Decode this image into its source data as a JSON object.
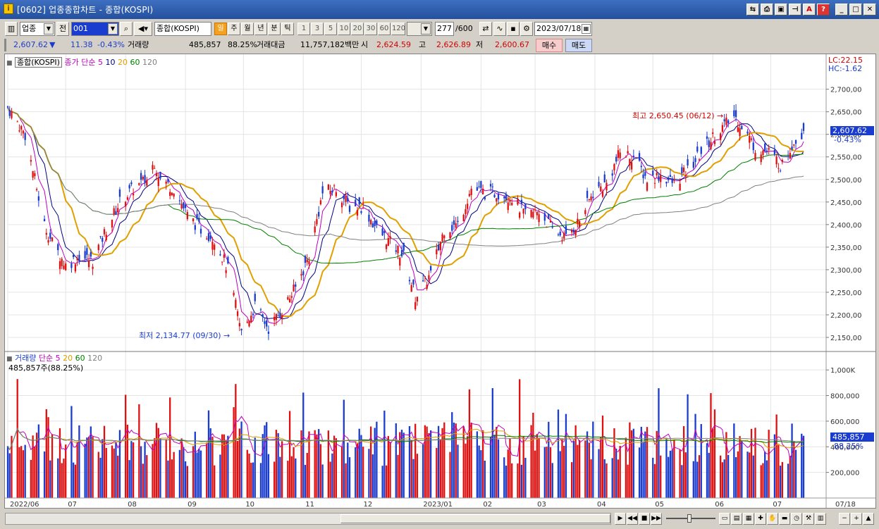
{
  "window": {
    "title": "[0602] 업종종합차트 - 종합(KOSPI)",
    "app_icon": "i"
  },
  "toolbar": {
    "market": "업종",
    "prev_label": "전",
    "code": "001",
    "search_icon": "magnifier-icon",
    "name": "종합(KOSPI)",
    "periods": [
      "일",
      "주",
      "월",
      "년",
      "분",
      "틱"
    ],
    "active_period": "일",
    "intervals": [
      "1",
      "3",
      "5",
      "10",
      "20",
      "30",
      "60",
      "120"
    ],
    "count": "277",
    "count_total": "/600",
    "date": "2023/07/18"
  },
  "quote": {
    "price": "2,607.62",
    "direction": "▼",
    "change": "11.38",
    "change_pct": "-0.43%",
    "volume_label": "거래량",
    "volume": "485,857",
    "volume_pct": "88.25%",
    "amount_label": "거래대금",
    "amount": "11,757,182백만",
    "open_label": "시",
    "open": "2,624.59",
    "high_label": "고",
    "high": "2,626.89",
    "low_label": "저",
    "low": "2,600.67",
    "buy_label": "매수",
    "sell_label": "매도"
  },
  "price_panel": {
    "legend_name": "종합(KOSPI)",
    "legend_title": "종가 단순",
    "ma_labels": [
      "5",
      "10",
      "20",
      "60",
      "120"
    ],
    "ma_colors": [
      "#c000c0",
      "#000080",
      "#e0a000",
      "#008000",
      "#808080"
    ],
    "lc": "LC:22.15",
    "hc": "HC:-1.62",
    "current_price": "2,607.62",
    "current_change": "-0.43%",
    "high_annotation": "최고 2,650.45 (06/12)",
    "low_annotation": "최저 2,134.77 (09/30)"
  },
  "volume_panel": {
    "legend_title": "거래량",
    "legend_ma": "단순",
    "ma_labels": [
      "5",
      "20",
      "60",
      "120"
    ],
    "ma_colors": [
      "#c000c0",
      "#e0a000",
      "#008000",
      "#808080"
    ],
    "info": "485,857주(88.25%)",
    "current_volume": "485,857",
    "current_pct": "88.25%"
  },
  "chart_data": [
    {
      "type": "candlestick",
      "title": "종합(KOSPI)",
      "y_ticks": [
        "2,700,00",
        "2,650,00",
        "2,600,00",
        "2,550,00",
        "2,500,00",
        "2,450,00",
        "2,400,00",
        "2,350,00",
        "2,300,00",
        "2,250,00",
        "2,200,00",
        "2,150,00"
      ],
      "ylim": [
        2125,
        2765
      ],
      "x_ticks": [
        "2022/06",
        "07",
        "08",
        "09",
        "10",
        "11",
        "12",
        "2023/01",
        "02",
        "03",
        "04",
        "05",
        "06",
        "07"
      ],
      "x_end_label": "07/18",
      "close_path": [
        [
          "2022-06-01",
          2660
        ],
        [
          "2022-06-10",
          2600
        ],
        [
          "2022-06-20",
          2400
        ],
        [
          "2022-06-24",
          2360
        ],
        [
          "2022-07-01",
          2310
        ],
        [
          "2022-07-08",
          2330
        ],
        [
          "2022-07-15",
          2320
        ],
        [
          "2022-07-22",
          2390
        ],
        [
          "2022-07-29",
          2450
        ],
        [
          "2022-08-05",
          2480
        ],
        [
          "2022-08-12",
          2500
        ],
        [
          "2022-08-16",
          2540
        ],
        [
          "2022-08-19",
          2500
        ],
        [
          "2022-08-26",
          2480
        ],
        [
          "2022-09-02",
          2420
        ],
        [
          "2022-09-09",
          2390
        ],
        [
          "2022-09-16",
          2370
        ],
        [
          "2022-09-23",
          2300
        ],
        [
          "2022-09-30",
          2160
        ],
        [
          "2022-10-07",
          2220
        ],
        [
          "2022-10-14",
          2170
        ],
        [
          "2022-10-21",
          2210
        ],
        [
          "2022-10-28",
          2260
        ],
        [
          "2022-11-04",
          2330
        ],
        [
          "2022-11-11",
          2470
        ],
        [
          "2022-11-18",
          2480
        ],
        [
          "2022-11-25",
          2440
        ],
        [
          "2022-12-02",
          2440
        ],
        [
          "2022-12-09",
          2390
        ],
        [
          "2022-12-16",
          2360
        ],
        [
          "2022-12-23",
          2330
        ],
        [
          "2022-12-29",
          2240
        ],
        [
          "2023-01-06",
          2290
        ],
        [
          "2023-01-13",
          2390
        ],
        [
          "2023-01-20",
          2400
        ],
        [
          "2023-01-27",
          2480
        ],
        [
          "2023-02-03",
          2470
        ],
        [
          "2023-02-10",
          2470
        ],
        [
          "2023-02-17",
          2460
        ],
        [
          "2023-02-24",
          2420
        ],
        [
          "2023-03-03",
          2430
        ],
        [
          "2023-03-10",
          2390
        ],
        [
          "2023-03-17",
          2370
        ],
        [
          "2023-03-24",
          2410
        ],
        [
          "2023-03-31",
          2470
        ],
        [
          "2023-04-07",
          2490
        ],
        [
          "2023-04-14",
          2560
        ],
        [
          "2023-04-21",
          2550
        ],
        [
          "2023-04-28",
          2500
        ],
        [
          "2023-05-05",
          2510
        ],
        [
          "2023-05-12",
          2490
        ],
        [
          "2023-05-19",
          2520
        ],
        [
          "2023-05-26",
          2560
        ],
        [
          "2023-06-02",
          2600
        ],
        [
          "2023-06-12",
          2640
        ],
        [
          "2023-06-16",
          2620
        ],
        [
          "2023-06-23",
          2570
        ],
        [
          "2023-06-30",
          2560
        ],
        [
          "2023-07-07",
          2530
        ],
        [
          "2023-07-12",
          2580
        ],
        [
          "2023-07-18",
          2607
        ]
      ],
      "high": {
        "date": "2023-06-12",
        "value": 2650.45
      },
      "low": {
        "date": "2022-09-30",
        "value": 2134.77
      },
      "last": {
        "date": "2023-07-18",
        "close": 2607.62,
        "open": 2624.59,
        "high": 2626.89,
        "low": 2600.67
      }
    },
    {
      "type": "bar",
      "title": "거래량",
      "y_ticks": [
        "1,000K",
        "800,000",
        "600,000",
        "400,000",
        "200,000"
      ],
      "ylim": [
        0,
        1100000
      ],
      "last_volume": 485857
    }
  ],
  "statusbar": {
    "nav_buttons": [
      "▶",
      "◀◀",
      "■",
      "▶▶"
    ],
    "zoom_icons": [
      "zoom-out-icon",
      "zoom-in-icon"
    ]
  }
}
